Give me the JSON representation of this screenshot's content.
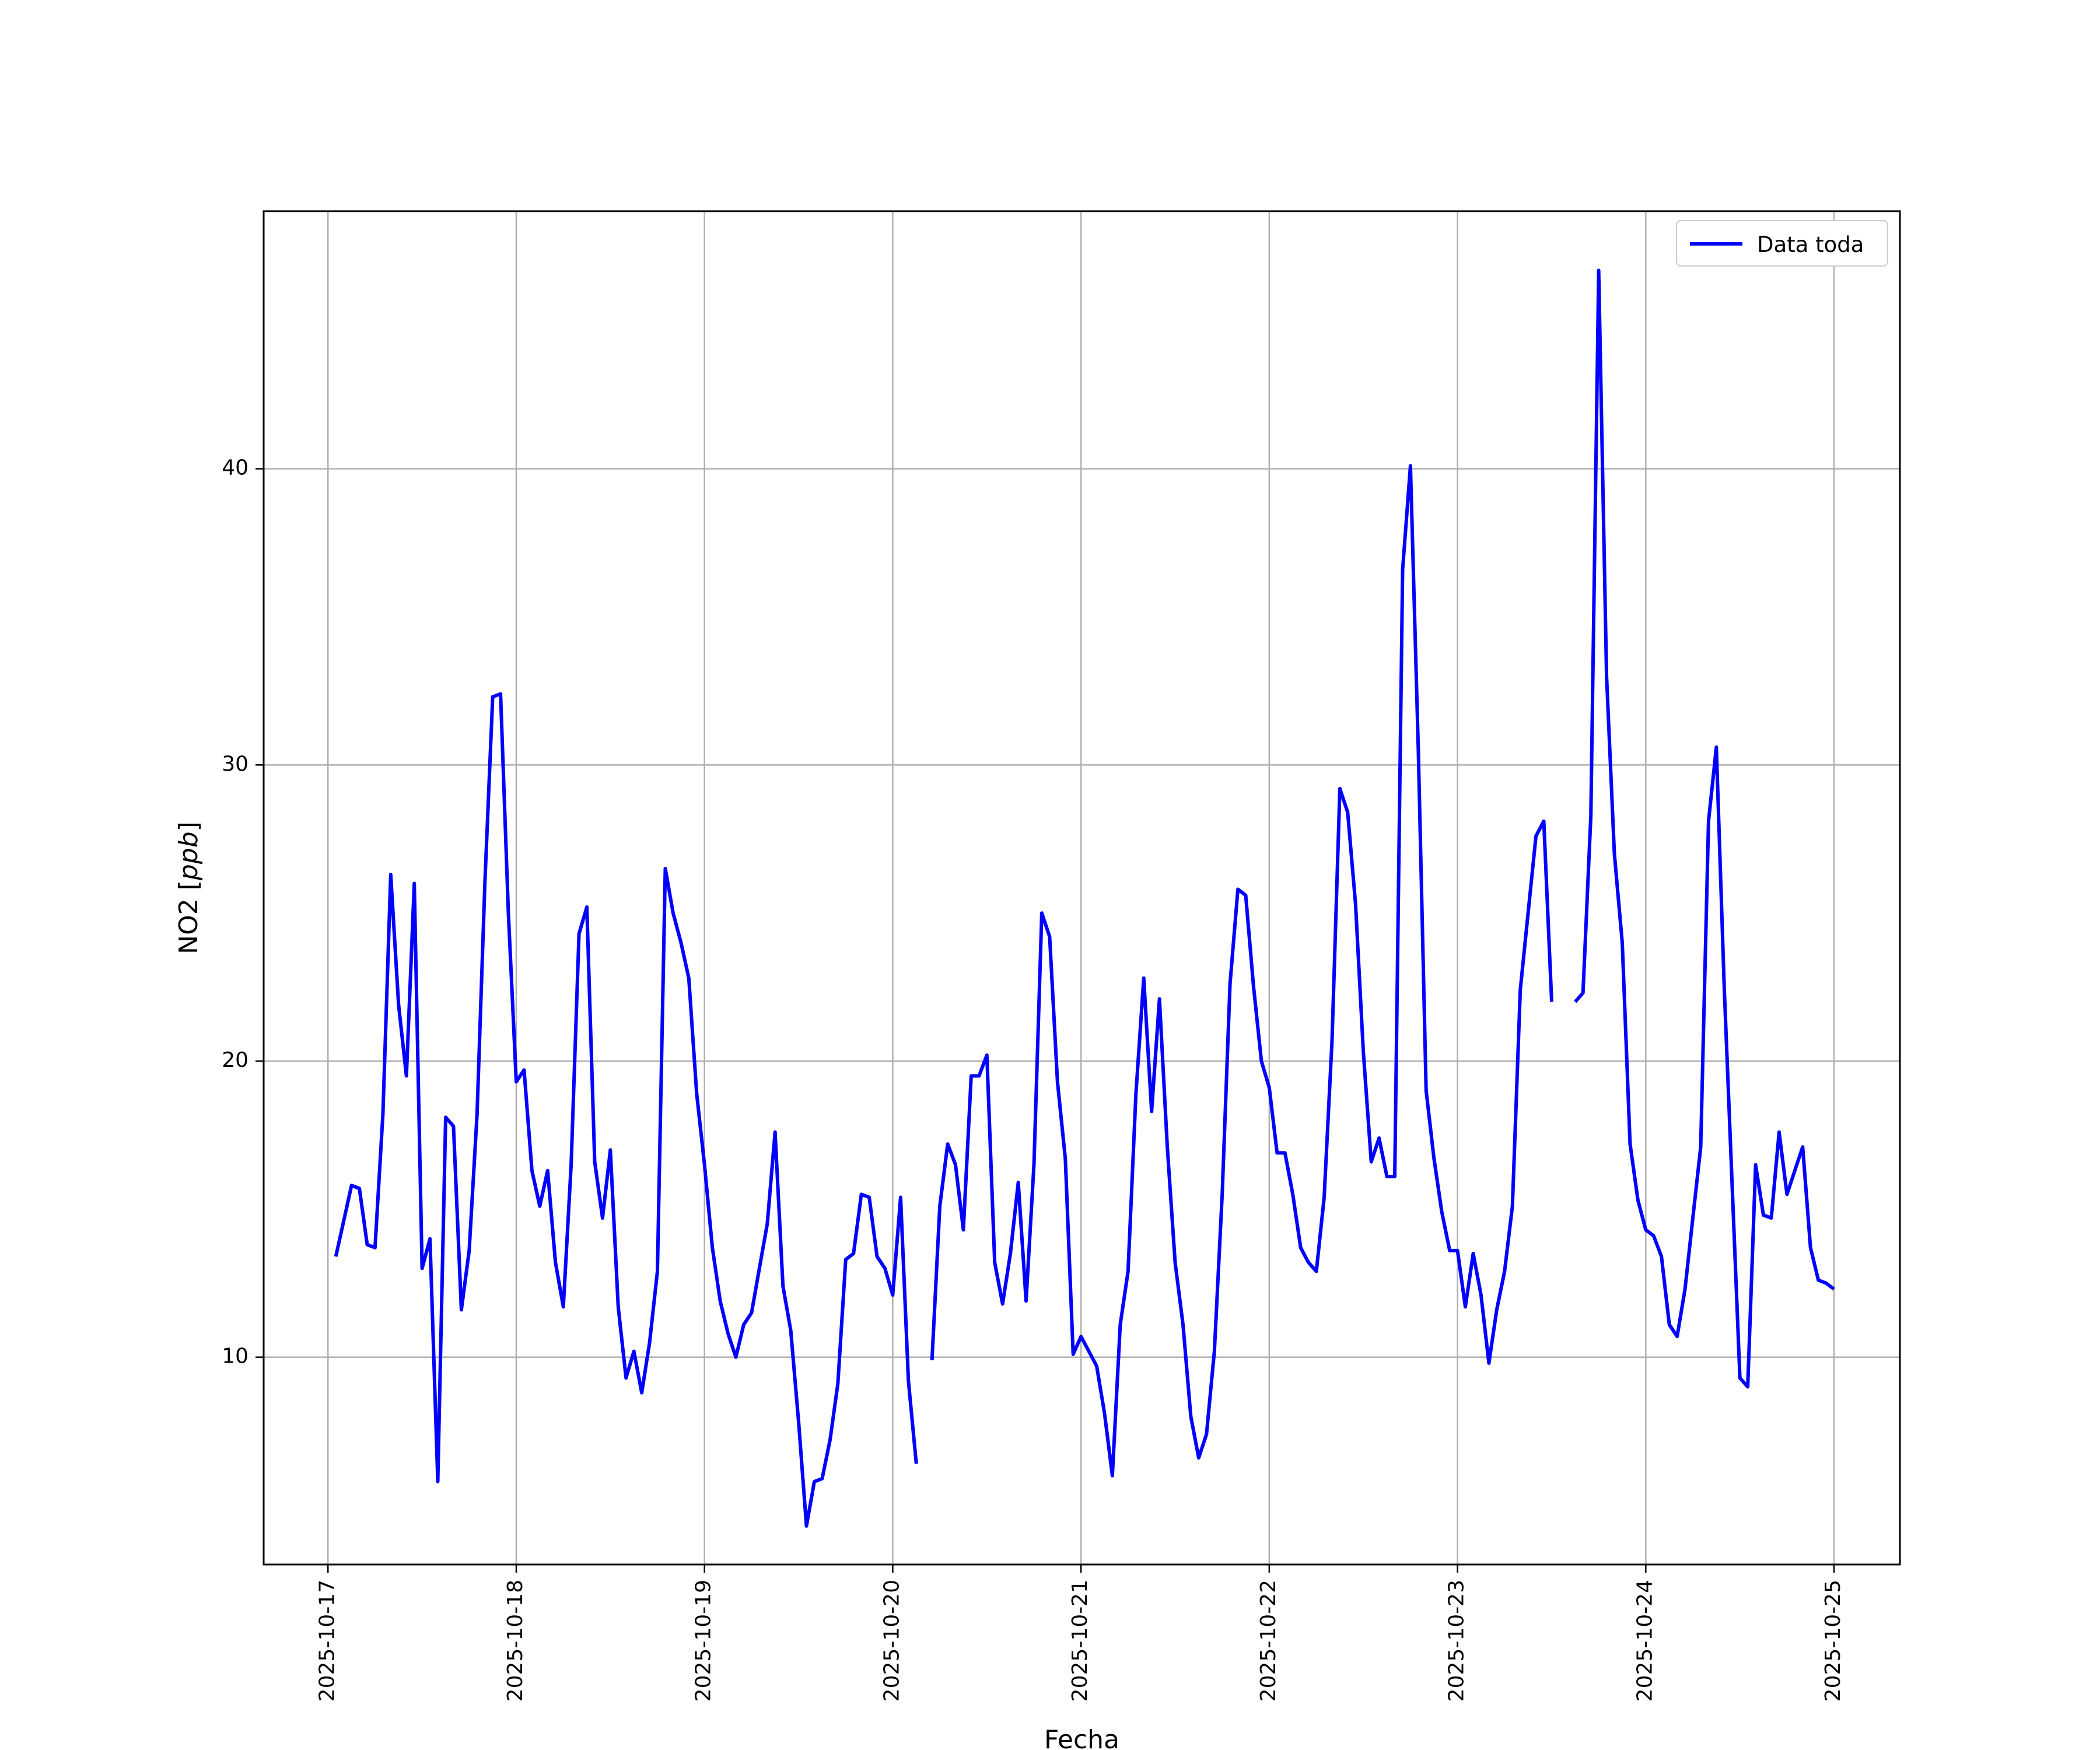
{
  "chart_data": {
    "type": "line",
    "xlabel": "Fecha",
    "ylabel_text": "NO2 [",
    "ylabel_unit": "ppb",
    "ylabel_close": "]",
    "x_axis_type": "date",
    "xlim": [
      "2025-10-16T15:48",
      "2025-10-25T08:24"
    ],
    "ylim": [
      3.0,
      48.7
    ],
    "grid": true,
    "legend_position": "top-right",
    "x_ticks": [
      "2025-10-17",
      "2025-10-18",
      "2025-10-19",
      "2025-10-20",
      "2025-10-21",
      "2025-10-22",
      "2025-10-23",
      "2025-10-24",
      "2025-10-25"
    ],
    "y_ticks": [
      10,
      20,
      30,
      40
    ],
    "series": [
      {
        "name": "Data toda",
        "color": "#0000ff",
        "points": [
          [
            "2025-10-17T01:00",
            13.4
          ],
          [
            "2025-10-17T02:00",
            14.6
          ],
          [
            "2025-10-17T03:00",
            15.8
          ],
          [
            "2025-10-17T04:00",
            15.7
          ],
          [
            "2025-10-17T05:00",
            13.8
          ],
          [
            "2025-10-17T06:00",
            13.7
          ],
          [
            "2025-10-17T07:00",
            18.2
          ],
          [
            "2025-10-17T08:00",
            26.3
          ],
          [
            "2025-10-17T09:00",
            21.9
          ],
          [
            "2025-10-17T10:00",
            19.5
          ],
          [
            "2025-10-17T11:00",
            26.0
          ],
          [
            "2025-10-17T12:00",
            13.0
          ],
          [
            "2025-10-17T13:00",
            14.0
          ],
          [
            "2025-10-17T14:00",
            5.8
          ],
          [
            "2025-10-17T15:00",
            18.1
          ],
          [
            "2025-10-17T16:00",
            17.8
          ],
          [
            "2025-10-17T17:00",
            11.6
          ],
          [
            "2025-10-17T18:00",
            13.6
          ],
          [
            "2025-10-17T19:00",
            18.2
          ],
          [
            "2025-10-17T20:00",
            26.0
          ],
          [
            "2025-10-17T21:00",
            32.3
          ],
          [
            "2025-10-17T22:00",
            32.4
          ],
          [
            "2025-10-17T23:00",
            25.0
          ],
          [
            "2025-10-18T00:00",
            19.3
          ],
          [
            "2025-10-18T01:00",
            19.7
          ],
          [
            "2025-10-18T02:00",
            16.3
          ],
          [
            "2025-10-18T03:00",
            15.1
          ],
          [
            "2025-10-18T04:00",
            16.3
          ],
          [
            "2025-10-18T05:00",
            13.2
          ],
          [
            "2025-10-18T06:00",
            11.7
          ],
          [
            "2025-10-18T07:00",
            16.5
          ],
          [
            "2025-10-18T08:00",
            24.3
          ],
          [
            "2025-10-18T09:00",
            25.2
          ],
          [
            "2025-10-18T10:00",
            16.6
          ],
          [
            "2025-10-18T11:00",
            14.7
          ],
          [
            "2025-10-18T12:00",
            17.0
          ],
          [
            "2025-10-18T13:00",
            11.7
          ],
          [
            "2025-10-18T14:00",
            9.3
          ],
          [
            "2025-10-18T15:00",
            10.2
          ],
          [
            "2025-10-18T16:00",
            8.8
          ],
          [
            "2025-10-18T17:00",
            10.5
          ],
          [
            "2025-10-18T18:00",
            12.9
          ],
          [
            "2025-10-18T19:00",
            26.5
          ],
          [
            "2025-10-18T20:00",
            25.0
          ],
          [
            "2025-10-18T21:00",
            24.0
          ],
          [
            "2025-10-18T22:00",
            22.8
          ],
          [
            "2025-10-18T23:00",
            18.9
          ],
          [
            "2025-10-19T00:00",
            16.5
          ],
          [
            "2025-10-19T01:00",
            13.7
          ],
          [
            "2025-10-19T02:00",
            11.9
          ],
          [
            "2025-10-19T03:00",
            10.8
          ],
          [
            "2025-10-19T04:00",
            10.0
          ],
          [
            "2025-10-19T05:00",
            11.1
          ],
          [
            "2025-10-19T06:00",
            11.5
          ],
          [
            "2025-10-19T07:00",
            13.0
          ],
          [
            "2025-10-19T08:00",
            14.5
          ],
          [
            "2025-10-19T09:00",
            17.6
          ],
          [
            "2025-10-19T10:00",
            12.4
          ],
          [
            "2025-10-19T11:00",
            10.9
          ],
          [
            "2025-10-19T12:00",
            7.8
          ],
          [
            "2025-10-19T13:00",
            4.3
          ],
          [
            "2025-10-19T14:00",
            5.8
          ],
          [
            "2025-10-19T15:00",
            5.9
          ],
          [
            "2025-10-19T16:00",
            7.2
          ],
          [
            "2025-10-19T17:00",
            9.1
          ],
          [
            "2025-10-19T18:00",
            13.3
          ],
          [
            "2025-10-19T19:00",
            13.5
          ],
          [
            "2025-10-19T20:00",
            15.5
          ],
          [
            "2025-10-19T21:00",
            15.4
          ],
          [
            "2025-10-19T22:00",
            13.4
          ],
          [
            "2025-10-19T23:00",
            13.0
          ],
          [
            "2025-10-20T00:00",
            12.1
          ],
          [
            "2025-10-20T01:00",
            15.4
          ],
          [
            "2025-10-20T02:00",
            9.2
          ],
          [
            "2025-10-20T03:00",
            6.4
          ],
          null,
          [
            "2025-10-20T05:00",
            9.9
          ],
          [
            "2025-10-20T06:00",
            15.1
          ],
          [
            "2025-10-20T07:00",
            17.2
          ],
          [
            "2025-10-20T08:00",
            16.5
          ],
          [
            "2025-10-20T09:00",
            14.3
          ],
          [
            "2025-10-20T10:00",
            19.5
          ],
          [
            "2025-10-20T11:00",
            19.5
          ],
          [
            "2025-10-20T12:00",
            20.2
          ],
          [
            "2025-10-20T13:00",
            13.2
          ],
          [
            "2025-10-20T14:00",
            11.8
          ],
          [
            "2025-10-20T15:00",
            13.5
          ],
          [
            "2025-10-20T16:00",
            15.9
          ],
          [
            "2025-10-20T17:00",
            11.9
          ],
          [
            "2025-10-20T18:00",
            16.5
          ],
          [
            "2025-10-20T19:00",
            25.0
          ],
          [
            "2025-10-20T20:00",
            24.2
          ],
          [
            "2025-10-20T21:00",
            19.3
          ],
          [
            "2025-10-20T22:00",
            16.7
          ],
          [
            "2025-10-20T23:00",
            10.1
          ],
          [
            "2025-10-21T00:00",
            10.7
          ],
          [
            "2025-10-21T01:00",
            10.2
          ],
          [
            "2025-10-21T02:00",
            9.7
          ],
          [
            "2025-10-21T03:00",
            8.1
          ],
          [
            "2025-10-21T04:00",
            6.0
          ],
          [
            "2025-10-21T05:00",
            11.1
          ],
          [
            "2025-10-21T06:00",
            12.9
          ],
          [
            "2025-10-21T07:00",
            18.9
          ],
          [
            "2025-10-21T08:00",
            22.8
          ],
          [
            "2025-10-21T09:00",
            18.3
          ],
          [
            "2025-10-21T10:00",
            22.1
          ],
          [
            "2025-10-21T11:00",
            17.1
          ],
          [
            "2025-10-21T12:00",
            13.2
          ],
          [
            "2025-10-21T13:00",
            11.1
          ],
          [
            "2025-10-21T14:00",
            8.0
          ],
          [
            "2025-10-21T15:00",
            6.6
          ],
          [
            "2025-10-21T16:00",
            7.4
          ],
          [
            "2025-10-21T17:00",
            10.2
          ],
          [
            "2025-10-21T18:00",
            15.5
          ],
          [
            "2025-10-21T19:00",
            22.6
          ],
          [
            "2025-10-21T20:00",
            25.8
          ],
          [
            "2025-10-21T21:00",
            25.6
          ],
          [
            "2025-10-21T22:00",
            22.5
          ],
          [
            "2025-10-21T23:00",
            20.0
          ],
          [
            "2025-10-22T00:00",
            19.1
          ],
          [
            "2025-10-22T01:00",
            16.9
          ],
          [
            "2025-10-22T02:00",
            16.9
          ],
          [
            "2025-10-22T03:00",
            15.5
          ],
          [
            "2025-10-22T04:00",
            13.7
          ],
          [
            "2025-10-22T05:00",
            13.2
          ],
          [
            "2025-10-22T06:00",
            12.9
          ],
          [
            "2025-10-22T07:00",
            15.4
          ],
          [
            "2025-10-22T08:00",
            20.7
          ],
          [
            "2025-10-22T09:00",
            29.2
          ],
          [
            "2025-10-22T10:00",
            28.4
          ],
          [
            "2025-10-22T11:00",
            25.3
          ],
          [
            "2025-10-22T12:00",
            20.3
          ],
          [
            "2025-10-22T13:00",
            16.6
          ],
          [
            "2025-10-22T14:00",
            17.4
          ],
          [
            "2025-10-22T15:00",
            16.1
          ],
          [
            "2025-10-22T16:00",
            16.1
          ],
          [
            "2025-10-22T17:00",
            36.6
          ],
          [
            "2025-10-22T18:00",
            40.1
          ],
          [
            "2025-10-22T19:00",
            30.5
          ],
          [
            "2025-10-22T20:00",
            19.0
          ],
          [
            "2025-10-22T21:00",
            16.7
          ],
          [
            "2025-10-22T22:00",
            14.9
          ],
          [
            "2025-10-22T23:00",
            13.6
          ],
          [
            "2025-10-23T00:00",
            13.6
          ],
          [
            "2025-10-23T01:00",
            11.7
          ],
          [
            "2025-10-23T02:00",
            13.5
          ],
          [
            "2025-10-23T03:00",
            12.1
          ],
          [
            "2025-10-23T04:00",
            9.8
          ],
          [
            "2025-10-23T05:00",
            11.6
          ],
          [
            "2025-10-23T06:00",
            12.9
          ],
          [
            "2025-10-23T07:00",
            15.1
          ],
          [
            "2025-10-23T08:00",
            22.4
          ],
          [
            "2025-10-23T09:00",
            25.0
          ],
          [
            "2025-10-23T10:00",
            27.6
          ],
          [
            "2025-10-23T11:00",
            28.1
          ],
          [
            "2025-10-23T12:00",
            22.0
          ],
          null,
          [
            "2025-10-23T15:00",
            22.0
          ],
          [
            "2025-10-23T16:00",
            22.3
          ],
          [
            "2025-10-23T17:00",
            28.3
          ],
          [
            "2025-10-23T18:00",
            46.7
          ],
          [
            "2025-10-23T19:00",
            33.0
          ],
          [
            "2025-10-23T20:00",
            27.0
          ],
          [
            "2025-10-23T21:00",
            24.0
          ],
          [
            "2025-10-23T22:00",
            17.2
          ],
          [
            "2025-10-23T23:00",
            15.3
          ],
          [
            "2025-10-24T00:00",
            14.3
          ],
          [
            "2025-10-24T01:00",
            14.1
          ],
          [
            "2025-10-24T02:00",
            13.4
          ],
          [
            "2025-10-24T03:00",
            11.1
          ],
          [
            "2025-10-24T04:00",
            10.7
          ],
          [
            "2025-10-24T05:00",
            12.3
          ],
          [
            "2025-10-24T06:00",
            14.7
          ],
          [
            "2025-10-24T07:00",
            17.1
          ],
          [
            "2025-10-24T08:00",
            28.1
          ],
          [
            "2025-10-24T09:00",
            30.6
          ],
          [
            "2025-10-24T10:00",
            22.5
          ],
          [
            "2025-10-24T11:00",
            15.9
          ],
          [
            "2025-10-24T12:00",
            9.3
          ],
          [
            "2025-10-24T13:00",
            9.0
          ],
          [
            "2025-10-24T14:00",
            16.5
          ],
          [
            "2025-10-24T15:00",
            14.8
          ],
          [
            "2025-10-24T16:00",
            14.7
          ],
          [
            "2025-10-24T17:00",
            17.6
          ],
          [
            "2025-10-24T18:00",
            15.5
          ],
          [
            "2025-10-24T19:00",
            16.3
          ],
          [
            "2025-10-24T20:00",
            17.1
          ],
          [
            "2025-10-24T21:00",
            13.7
          ],
          [
            "2025-10-24T22:00",
            12.6
          ],
          [
            "2025-10-24T23:00",
            12.5
          ],
          [
            "2025-10-25T00:00",
            12.3
          ]
        ]
      }
    ]
  }
}
